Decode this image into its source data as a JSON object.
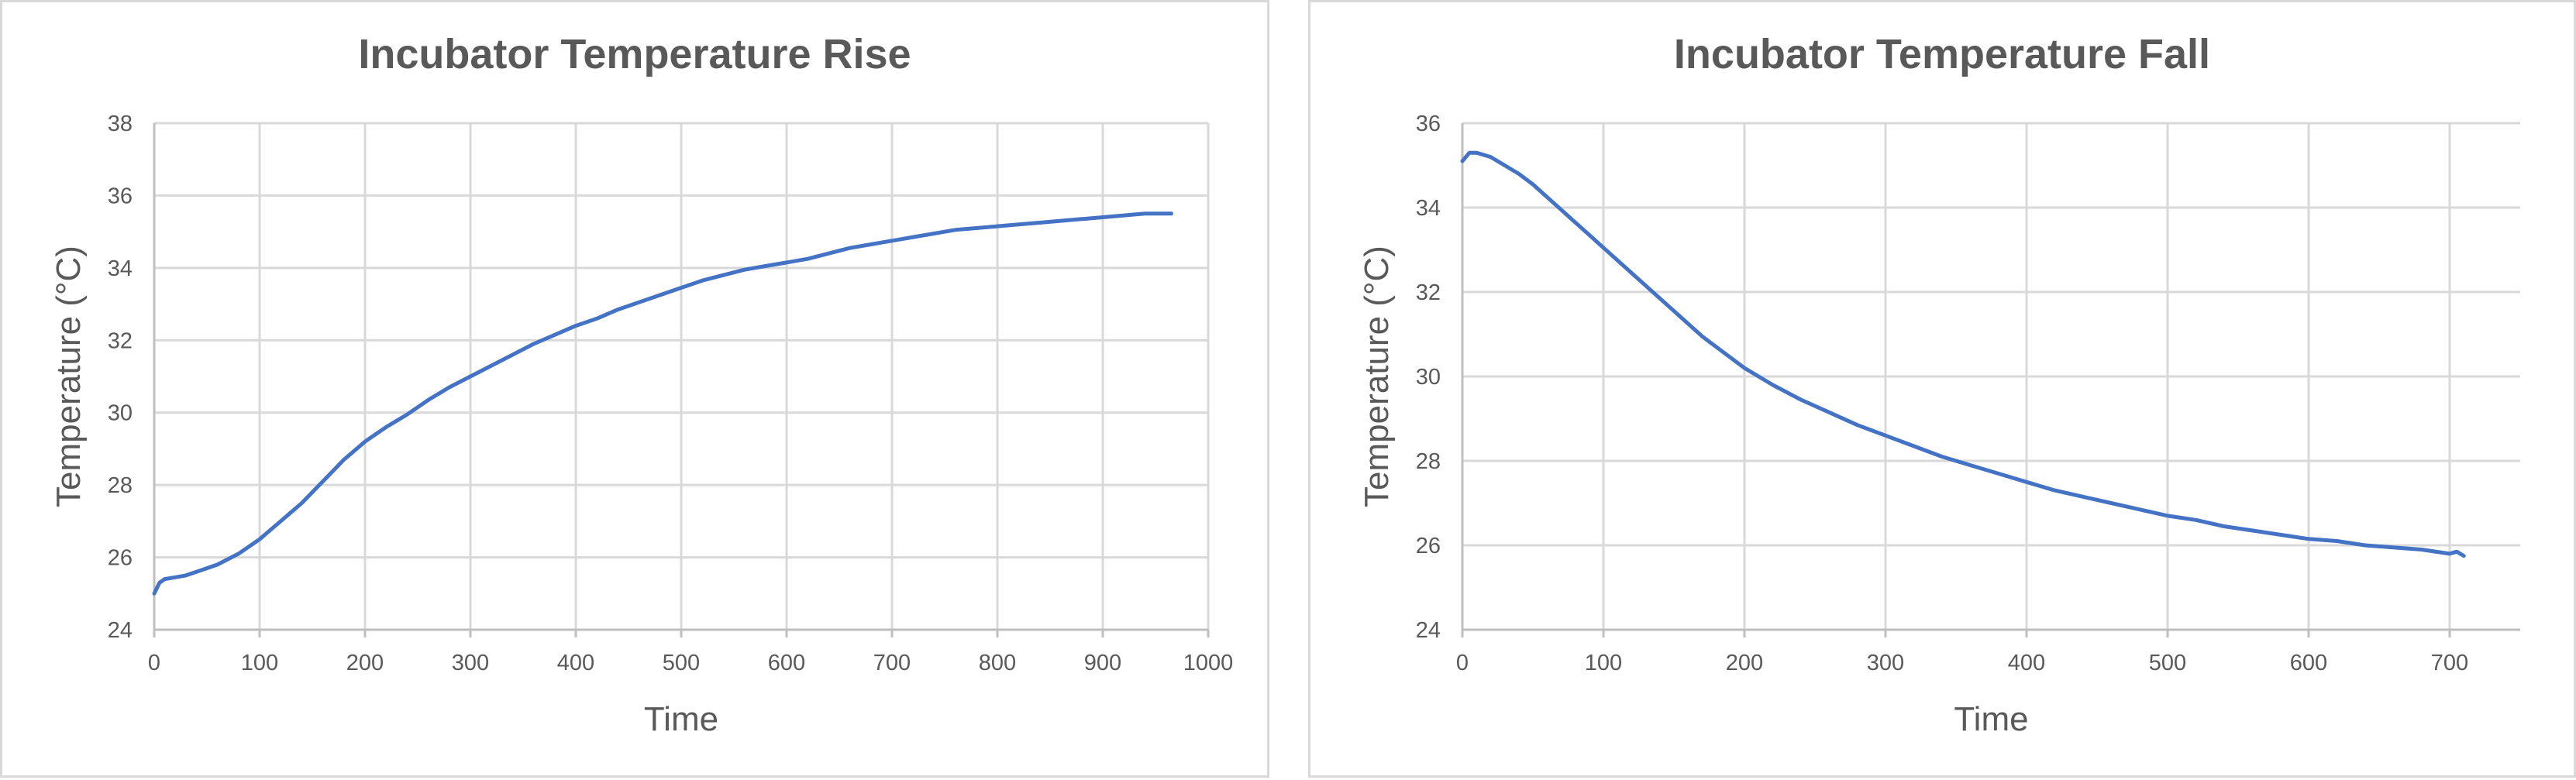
{
  "chart_data": [
    {
      "type": "line",
      "title": "Incubator Temperature Rise",
      "xlabel": "Time",
      "ylabel": "Temperature (°C)",
      "xlim": [
        0,
        1000
      ],
      "ylim": [
        24,
        38
      ],
      "xticks": [
        0,
        100,
        200,
        300,
        400,
        500,
        600,
        700,
        800,
        900,
        1000
      ],
      "yticks": [
        24,
        26,
        28,
        30,
        32,
        34,
        36,
        38
      ],
      "grid": true,
      "legend": "none",
      "color": "#4472c4",
      "series": [
        {
          "x": [
            0,
            5,
            10,
            20,
            30,
            40,
            50,
            60,
            70,
            80,
            90,
            100,
            110,
            120,
            130,
            140,
            150,
            160,
            170,
            180,
            190,
            200,
            220,
            240,
            260,
            280,
            300,
            320,
            340,
            360,
            380,
            400,
            420,
            440,
            460,
            480,
            500,
            520,
            540,
            560,
            580,
            600,
            620,
            640,
            660,
            680,
            700,
            720,
            740,
            760,
            780,
            800,
            820,
            840,
            860,
            880,
            900,
            920,
            940,
            960,
            965
          ],
          "y": [
            25.0,
            25.3,
            25.4,
            25.45,
            25.5,
            25.6,
            25.7,
            25.8,
            25.95,
            26.1,
            26.3,
            26.5,
            26.75,
            27.0,
            27.25,
            27.5,
            27.8,
            28.1,
            28.4,
            28.7,
            28.95,
            29.2,
            29.6,
            29.95,
            30.35,
            30.7,
            31.0,
            31.3,
            31.6,
            31.9,
            32.15,
            32.4,
            32.6,
            32.85,
            33.05,
            33.25,
            33.45,
            33.65,
            33.8,
            33.95,
            34.05,
            34.15,
            34.25,
            34.4,
            34.55,
            34.65,
            34.75,
            34.85,
            34.95,
            35.05,
            35.1,
            35.15,
            35.2,
            35.25,
            35.3,
            35.35,
            35.4,
            35.45,
            35.5,
            35.5,
            35.5
          ]
        }
      ]
    },
    {
      "type": "line",
      "title": "Incubator Temperature Fall",
      "xlabel": "Time",
      "ylabel": "Temperature (°C)",
      "xlim": [
        0,
        750
      ],
      "ylim": [
        24,
        36
      ],
      "xticks": [
        0,
        100,
        200,
        300,
        400,
        500,
        600,
        700
      ],
      "yticks": [
        24,
        26,
        28,
        30,
        32,
        34,
        36
      ],
      "grid": true,
      "legend": "none",
      "color": "#4472c4",
      "series": [
        {
          "x": [
            0,
            5,
            10,
            20,
            30,
            40,
            50,
            60,
            70,
            80,
            90,
            100,
            110,
            120,
            130,
            140,
            150,
            160,
            170,
            180,
            190,
            200,
            220,
            240,
            260,
            280,
            300,
            320,
            340,
            360,
            380,
            400,
            420,
            440,
            460,
            480,
            500,
            520,
            540,
            560,
            580,
            600,
            620,
            640,
            660,
            680,
            700,
            705,
            710
          ],
          "y": [
            35.1,
            35.3,
            35.3,
            35.2,
            35.0,
            34.8,
            34.55,
            34.25,
            33.95,
            33.65,
            33.35,
            33.05,
            32.75,
            32.45,
            32.15,
            31.85,
            31.55,
            31.25,
            30.95,
            30.7,
            30.45,
            30.2,
            29.8,
            29.45,
            29.15,
            28.85,
            28.6,
            28.35,
            28.1,
            27.9,
            27.7,
            27.5,
            27.3,
            27.15,
            27.0,
            26.85,
            26.7,
            26.6,
            26.45,
            26.35,
            26.25,
            26.15,
            26.1,
            26.0,
            25.95,
            25.9,
            25.8,
            25.85,
            25.75
          ]
        }
      ]
    }
  ]
}
